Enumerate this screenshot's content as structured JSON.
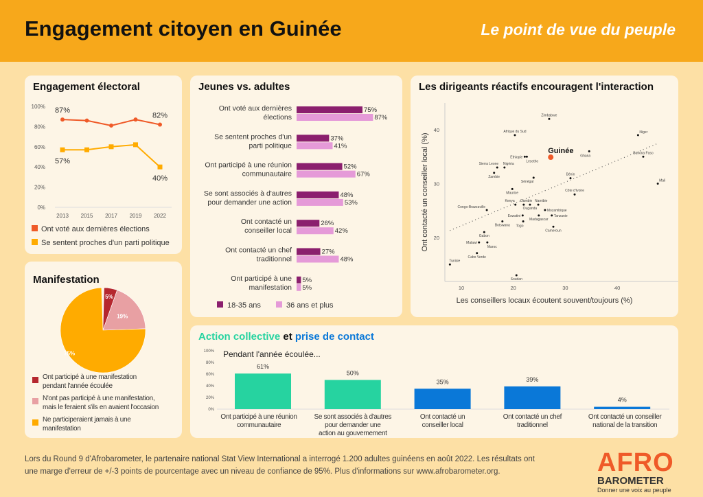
{
  "header": {
    "title": "Engagement citoyen en Guinée",
    "subtitle": "Le point de vue du peuple"
  },
  "colors": {
    "header": "#f7a81b",
    "voted": "#ef5a28",
    "party": "#ffab00",
    "youth": "#8b1f6e",
    "adult": "#e59ad8",
    "teal": "#26d3a0",
    "blue": "#0a78d8",
    "pie1": "#b5272e",
    "pie2": "#e8a0a3",
    "pie3": "#ffab00"
  },
  "footer": {
    "text": "Lors du Round 9 d'Afrobarometer, le partenaire national Stat View International a interrogé 1.200 adultes guinéens en août 2022. Les résultats ont une marge d'erreur de +/-3 points de pourcentage avec un niveau de confiance de 95%. Plus d'informations sur www.afrobarometer.org."
  },
  "logo": {
    "afro": "AFRO",
    "barometer": "BAROMETER",
    "tagline": "Donner une voix au peuple"
  },
  "chart_data": [
    {
      "id": "electoral",
      "type": "line",
      "title": "Engagement électoral",
      "categories": [
        "2013",
        "2015",
        "2017",
        "2019",
        "2022"
      ],
      "ylim": [
        0,
        100
      ],
      "yticks": [
        "0%",
        "20%",
        "40%",
        "60%",
        "80%",
        "100%"
      ],
      "series": [
        {
          "name": "Ont voté aux dernières élections",
          "values": [
            87,
            86,
            81,
            87,
            82
          ],
          "labels": [
            "87%",
            "",
            "",
            "",
            "82%"
          ]
        },
        {
          "name": "Se sentent proches d'un parti politique",
          "values": [
            57,
            57,
            60,
            62,
            40
          ],
          "labels": [
            "57%",
            "",
            "",
            "",
            "40%"
          ]
        }
      ]
    },
    {
      "id": "manif",
      "type": "pie",
      "title": "Manifestation",
      "slices": [
        {
          "name": "Ont participé à une manifestation pendant l'année écoulée",
          "value": 5,
          "label": "5%"
        },
        {
          "name": "N'ont pas participé à une manifestation, mais le feraient s'ils en avaient l'occasion",
          "value": 19,
          "label": "19%"
        },
        {
          "name": "Ne participeraient jamais à une manifestation",
          "value": 75,
          "label": "75%"
        }
      ]
    },
    {
      "id": "youth",
      "type": "bar",
      "title": "Jeunes vs. adultes",
      "categories": [
        [
          "Ont voté aux dernières",
          "élections"
        ],
        [
          "Se sentent proches d'un",
          "parti politique"
        ],
        [
          "Ont participé à une réunion",
          "communautaire"
        ],
        [
          "Se sont associés à d'autres",
          "pour demander une action"
        ],
        [
          "Ont contacté un",
          "conseiller local"
        ],
        [
          "Ont contacté un chef",
          "traditionnel"
        ],
        [
          "Ont participé à une",
          "manifestation"
        ]
      ],
      "series": [
        {
          "name": "18-35 ans",
          "values": [
            75,
            37,
            52,
            48,
            26,
            27,
            5
          ]
        },
        {
          "name": "36 ans et plus",
          "values": [
            87,
            41,
            67,
            53,
            42,
            48,
            5
          ]
        }
      ]
    },
    {
      "id": "scatter",
      "type": "scatter",
      "title": "Les dirigeants réactifs encouragent l'interaction",
      "xlabel": "Les conseillers locaux écoutent souvent/toujours (%)",
      "ylabel": "Ont contacté un conseiller local (%)",
      "xlim": [
        6,
        50
      ],
      "ylim": [
        12,
        44
      ],
      "xticks": [
        10,
        20,
        30,
        40
      ],
      "yticks": [
        20,
        30,
        40
      ],
      "trendline": [
        [
          7.8,
          21.3
        ],
        [
          47.9,
          37.5
        ]
      ],
      "points": [
        {
          "name": "Zimbabwe",
          "x": 26.9,
          "y": 42
        },
        {
          "name": "Afrique du Sud",
          "x": 20.3,
          "y": 39
        },
        {
          "name": "Niger",
          "x": 44,
          "y": 39
        },
        {
          "name": "Guinée",
          "x": 27.2,
          "y": 34.9,
          "highlight": true
        },
        {
          "name": "Ghana",
          "x": 34.6,
          "y": 36
        },
        {
          "name": "Burkina Faso",
          "x": 45,
          "y": 35
        },
        {
          "name": "Ethiopie",
          "x": 22.2,
          "y": 35
        },
        {
          "name": "Lesotho",
          "x": 22.6,
          "y": 35
        },
        {
          "name": "Sierra Leone",
          "x": 16.9,
          "y": 33
        },
        {
          "name": "Nigéria",
          "x": 18.3,
          "y": 33
        },
        {
          "name": "Zambie",
          "x": 16.3,
          "y": 32
        },
        {
          "name": "Sénégal",
          "x": 23.9,
          "y": 31.1
        },
        {
          "name": "Bénin",
          "x": 31,
          "y": 31
        },
        {
          "name": "Mali",
          "x": 47.8,
          "y": 30
        },
        {
          "name": "Maurice",
          "x": 19.8,
          "y": 29
        },
        {
          "name": "Côte d'Ivoire",
          "x": 31.8,
          "y": 28
        },
        {
          "name": "Kenya",
          "x": 20.4,
          "y": 26.1
        },
        {
          "name": "Gambie",
          "x": 22,
          "y": 26.1
        },
        {
          "name": "Ouganda",
          "x": 23.2,
          "y": 26.1
        },
        {
          "name": "Namibie",
          "x": 24.8,
          "y": 26.1
        },
        {
          "name": "Congo-Brazzaville",
          "x": 14.9,
          "y": 25.1
        },
        {
          "name": "Mozambique",
          "x": 26.1,
          "y": 25.1
        },
        {
          "name": "Eswatini",
          "x": 21.8,
          "y": 24.1
        },
        {
          "name": "Madagascar",
          "x": 24.9,
          "y": 24.1
        },
        {
          "name": "Tanzanie",
          "x": 27.4,
          "y": 24.1
        },
        {
          "name": "Togo",
          "x": 21.9,
          "y": 23
        },
        {
          "name": "Botswana",
          "x": 17.9,
          "y": 23
        },
        {
          "name": "Cameroun",
          "x": 27.7,
          "y": 22
        },
        {
          "name": "Gabon",
          "x": 14.4,
          "y": 21
        },
        {
          "name": "Malawi",
          "x": 13.4,
          "y": 19.1
        },
        {
          "name": "Maroc",
          "x": 15,
          "y": 19.1
        },
        {
          "name": "Cabo Verde",
          "x": 13,
          "y": 17.1
        },
        {
          "name": "Tunisie",
          "x": 7.8,
          "y": 15
        },
        {
          "name": "Soudan",
          "x": 20.6,
          "y": 13
        }
      ]
    },
    {
      "id": "action",
      "type": "bar",
      "title_part1": "Action collective",
      "title_and": "et",
      "title_part2": "prise de contact",
      "subtitle": "Pendant l'année écoulée...",
      "ylim": [
        0,
        100
      ],
      "yticks": [
        "0%",
        "20%",
        "40%",
        "60%",
        "80%",
        "100%"
      ],
      "categories": [
        [
          "Ont participé à une réunion",
          "communautaire"
        ],
        [
          "Se sont associés à d'autres",
          "pour demander une",
          "action au gouvernement"
        ],
        [
          "Ont contacté un",
          "conseiller local"
        ],
        [
          "Ont contacté un chef",
          "traditionnel"
        ],
        [
          "Ont contacté un conseiller",
          "national de la transition"
        ]
      ],
      "values": [
        61,
        50,
        35,
        39,
        4
      ],
      "labels": [
        "61%",
        "50%",
        "35%",
        "39%",
        "4%"
      ],
      "group": [
        "collective",
        "collective",
        "contact",
        "contact",
        "contact"
      ]
    }
  ]
}
